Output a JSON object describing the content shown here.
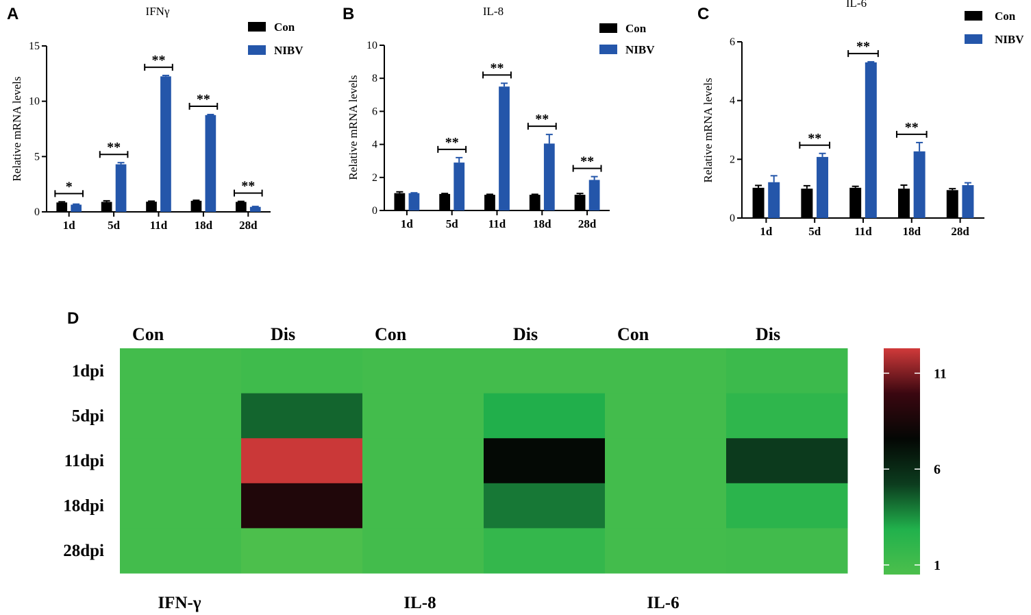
{
  "chart_data": [
    {
      "panel": "A",
      "type": "bar",
      "title": "IFNγ",
      "ylabel": "Relative mRNA levels",
      "xlabel": "",
      "ylim": [
        0,
        15
      ],
      "yticks": [
        0,
        5,
        10,
        15
      ],
      "categories": [
        "1d",
        "5d",
        "11d",
        "18d",
        "28d"
      ],
      "series": [
        {
          "name": "Con",
          "color": "#000000",
          "values": [
            0.85,
            0.9,
            0.92,
            1.0,
            0.9
          ],
          "errors": [
            0.06,
            0.1,
            0.05,
            0.05,
            0.05
          ]
        },
        {
          "name": "NIBV",
          "color": "#2456aa",
          "values": [
            0.65,
            4.3,
            12.25,
            8.75,
            0.45
          ],
          "errors": [
            0.05,
            0.15,
            0.08,
            0.05,
            0.04
          ]
        }
      ],
      "significance": [
        "*",
        "**",
        "**",
        "**",
        "**"
      ]
    },
    {
      "panel": "B",
      "type": "bar",
      "title": "IL-8",
      "ylabel": "Relative mRNA levels",
      "xlabel": "",
      "ylim": [
        0,
        10
      ],
      "yticks": [
        0,
        2,
        4,
        6,
        8,
        10
      ],
      "categories": [
        "1d",
        "5d",
        "11d",
        "18d",
        "28d"
      ],
      "series": [
        {
          "name": "Con",
          "color": "#000000",
          "values": [
            1.05,
            1.0,
            0.95,
            0.95,
            0.95
          ],
          "errors": [
            0.08,
            0.03,
            0.03,
            0.03,
            0.08
          ]
        },
        {
          "name": "NIBV",
          "color": "#2456aa",
          "values": [
            1.05,
            2.9,
            7.5,
            4.05,
            1.85
          ],
          "errors": [
            0.02,
            0.3,
            0.2,
            0.55,
            0.2
          ]
        }
      ],
      "significance": [
        "",
        "**",
        "**",
        "**",
        "**"
      ]
    },
    {
      "panel": "C",
      "type": "bar",
      "title": "IL-6",
      "ylabel": "Relative mRNA levels",
      "xlabel": "",
      "ylim": [
        0,
        6
      ],
      "yticks": [
        0,
        2,
        4,
        6
      ],
      "categories": [
        "1d",
        "5d",
        "11d",
        "18d",
        "28d"
      ],
      "series": [
        {
          "name": "Con",
          "color": "#000000",
          "values": [
            1.03,
            1.0,
            1.03,
            1.0,
            0.95
          ],
          "errors": [
            0.08,
            0.1,
            0.05,
            0.12,
            0.05
          ]
        },
        {
          "name": "NIBV",
          "color": "#2456aa",
          "values": [
            1.22,
            2.08,
            5.3,
            2.27,
            1.12
          ],
          "errors": [
            0.22,
            0.12,
            0.02,
            0.3,
            0.08
          ]
        }
      ],
      "significance": [
        "",
        "**",
        "**",
        "**",
        ""
      ]
    },
    {
      "panel": "D",
      "type": "heatmap",
      "columns": [
        "Con",
        "Dis",
        "Con",
        "Dis",
        "Con",
        "Dis"
      ],
      "genes": [
        "IFN-γ",
        "IL-8",
        "IL-6"
      ],
      "rows": [
        "1dpi",
        "5dpi",
        "11dpi",
        "18dpi",
        "28dpi"
      ],
      "values": [
        [
          1.0,
          1.2,
          1.0,
          1.0,
          1.0,
          1.4
        ],
        [
          1.0,
          4.4,
          1.0,
          2.9,
          1.0,
          2.1
        ],
        [
          1.0,
          12.2,
          1.0,
          7.5,
          1.0,
          5.3
        ],
        [
          1.0,
          8.8,
          1.0,
          4.0,
          1.0,
          2.3
        ],
        [
          1.0,
          0.5,
          1.0,
          1.8,
          1.0,
          1.1
        ]
      ],
      "colorbar": {
        "min": 0.5,
        "max": 12.3,
        "ticks": [
          1,
          6,
          11
        ],
        "colors": [
          "#4cbf4c",
          "#21b14c",
          "#0c3c1e",
          "#040704",
          "#3a0710",
          "#d03a3a"
        ]
      }
    }
  ]
}
